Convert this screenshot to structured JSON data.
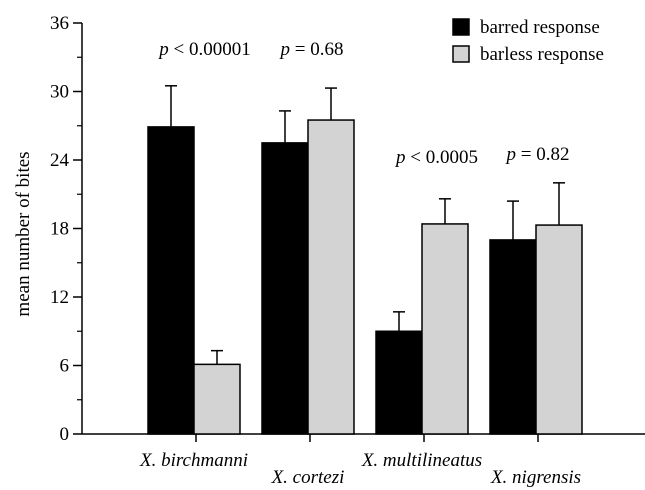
{
  "chart_data": {
    "type": "bar",
    "categories": [
      "X. birchmanni",
      "X. cortezi",
      "X. multilineatus",
      "X. nigrensis"
    ],
    "series": [
      {
        "name": "barred response",
        "color": "#000000",
        "values": [
          26.9,
          25.5,
          9.0,
          17.0
        ],
        "errors": [
          3.6,
          2.8,
          1.7,
          3.4
        ]
      },
      {
        "name": "barless response",
        "color": "#d3d3d3",
        "values": [
          6.1,
          27.5,
          18.4,
          18.3
        ],
        "errors": [
          1.2,
          2.8,
          2.2,
          3.7
        ]
      }
    ],
    "ylabel": "mean number of bites",
    "xlabel": "",
    "ylim": [
      0,
      36
    ],
    "yticks": [
      0,
      6,
      12,
      18,
      24,
      30,
      36
    ],
    "legend_position": "top-right",
    "annotations": [
      {
        "p": "p",
        "text": " < 0.00001",
        "category": "X. birchmanni"
      },
      {
        "p": "p",
        "text": " = 0.68",
        "category": "X. cortezi"
      },
      {
        "p": "p",
        "text": " < 0.0005",
        "category": "X. multilineatus"
      },
      {
        "p": "p",
        "text": " = 0.82",
        "category": "X. nigrensis"
      }
    ]
  }
}
